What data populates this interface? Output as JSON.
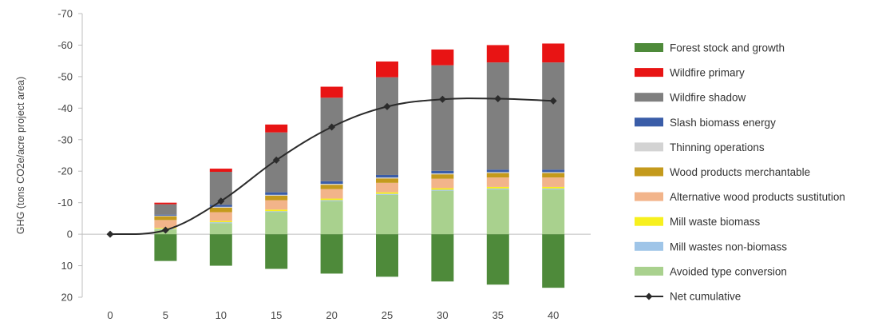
{
  "chart_data": {
    "type": "bar",
    "stacked": true,
    "ylabel": "GHG (tons CO2e/acre project area)",
    "xlabel": "",
    "y_reversed": true,
    "ylim": [
      20,
      -70
    ],
    "yticks": [
      -70,
      -60,
      -50,
      -40,
      -30,
      -20,
      -10,
      0,
      10,
      20
    ],
    "categories": [
      "0",
      "5",
      "10",
      "15",
      "20",
      "25",
      "30",
      "35",
      "40"
    ],
    "legend_position": "right",
    "series": [
      {
        "name": "Forest stock and growth",
        "color": "#4e8a3a",
        "values": [
          0,
          8.5,
          10,
          11,
          12.5,
          13.5,
          15,
          16,
          17
        ]
      },
      {
        "name": "Wildfire primary",
        "color": "#e81414",
        "values": [
          0,
          -0.5,
          -1,
          -2.5,
          -3.5,
          -5,
          -5,
          -5.5,
          -6
        ]
      },
      {
        "name": "Wildfire shadow",
        "color": "#7f7f7f",
        "values": [
          0,
          -3.3,
          -10.5,
          -19,
          -26.5,
          -31,
          -33.5,
          -34,
          -34
        ]
      },
      {
        "name": "Slash biomass energy",
        "color": "#3a5da8",
        "values": [
          0,
          -0.3,
          -0.6,
          -0.8,
          -0.8,
          -0.8,
          -0.8,
          -0.8,
          -0.8
        ]
      },
      {
        "name": "Thinning operations",
        "color": "#d3d3d3",
        "values": [
          0,
          -0.2,
          -0.3,
          -0.3,
          -0.3,
          -0.3,
          -0.3,
          -0.3,
          -0.3
        ]
      },
      {
        "name": "Wood products merchantable",
        "color": "#c49a1c",
        "values": [
          0,
          -1.2,
          -1.4,
          -1.4,
          -1.4,
          -1.4,
          -1.4,
          -1.4,
          -1.4
        ]
      },
      {
        "name": "Alternative wood products sustitution",
        "color": "#f2b48a",
        "values": [
          0,
          -2.5,
          -2.8,
          -3,
          -3,
          -3,
          -3,
          -3,
          -3
        ]
      },
      {
        "name": "Mill waste biomass",
        "color": "#f7f01e",
        "values": [
          0,
          -0.3,
          -0.4,
          -0.5,
          -0.5,
          -0.5,
          -0.5,
          -0.5,
          -0.5
        ]
      },
      {
        "name": "Mill wastes non-biomass",
        "color": "#9fc5e8",
        "values": [
          0,
          -0.2,
          -0.3,
          -0.3,
          -0.3,
          -0.3,
          -0.3,
          -0.3,
          -0.3
        ]
      },
      {
        "name": "Avoided type conversion",
        "color": "#a9d18e",
        "values": [
          0,
          -1.5,
          -3.5,
          -7,
          -10.5,
          -12.5,
          -13.8,
          -14.2,
          -14.2
        ]
      }
    ],
    "line": {
      "name": "Net cumulative",
      "color": "#2b2b2b",
      "values": [
        0,
        -1.3,
        -10.5,
        -23.5,
        -34,
        -40.5,
        -42.8,
        -43,
        -42.3
      ]
    }
  }
}
